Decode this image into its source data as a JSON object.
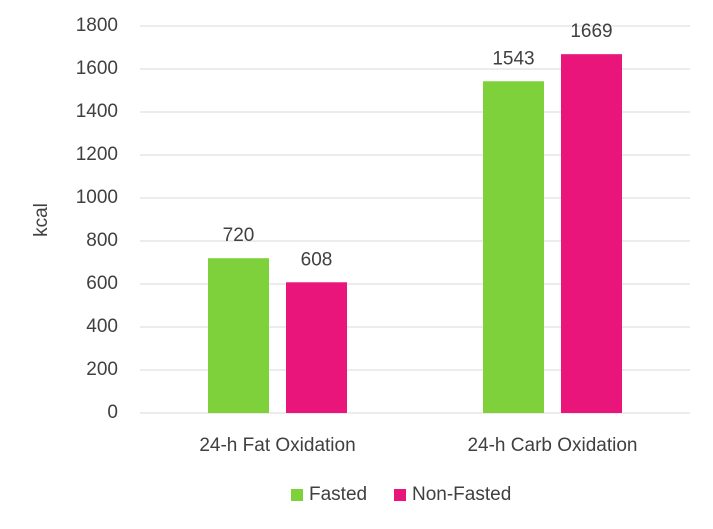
{
  "chart_data": {
    "type": "bar",
    "y_label": "kcal",
    "categories": [
      "24-h Fat Oxidation",
      "24-h Carb Oxidation"
    ],
    "series": [
      {
        "name": "Fasted",
        "color": "#7fd13b",
        "values": [
          720,
          1543
        ]
      },
      {
        "name": "Non-Fasted",
        "color": "#ea157a",
        "values": [
          608,
          1669
        ]
      }
    ],
    "ylim": [
      0,
      1800
    ],
    "yticks": [
      0,
      200,
      400,
      600,
      800,
      1000,
      1200,
      1400,
      1600,
      1800
    ],
    "grid": true,
    "legend": "bottom"
  }
}
